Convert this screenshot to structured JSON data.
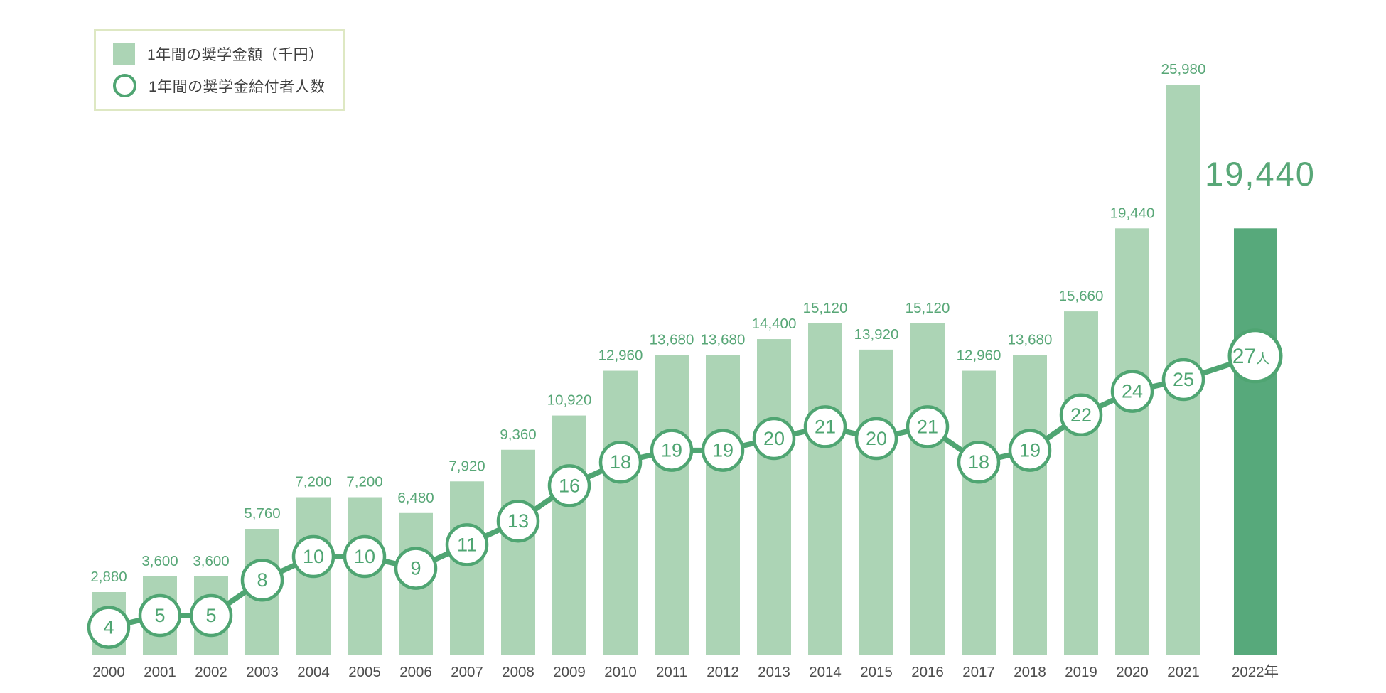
{
  "legend": {
    "bar_label": "1年間の奨学金額（千円）",
    "line_label": "1年間の奨学金給付者人数"
  },
  "highlight": {
    "big_value_label": "19,440",
    "person_count_label": "27",
    "person_suffix": "人"
  },
  "colors": {
    "bar_light": "#ACD4B5",
    "bar_dark": "#57A97B",
    "line_green": "#4FA572",
    "value_text": "#58A777",
    "axis_text": "#4D4D4D",
    "legend_border": "#DEE8C3",
    "circle_fill": "#FFFFFF"
  },
  "chart_data": {
    "type": "bar",
    "subtype": "bar+line-combo",
    "title": "",
    "xlabel": "",
    "ylabel": "",
    "grid": false,
    "legend_position": "top-left",
    "ylim": [
      0,
      26000
    ],
    "categories": [
      "2000",
      "2001",
      "2002",
      "2003",
      "2004",
      "2005",
      "2006",
      "2007",
      "2008",
      "2009",
      "2010",
      "2011",
      "2012",
      "2013",
      "2014",
      "2015",
      "2016",
      "2017",
      "2018",
      "2019",
      "2020",
      "2021",
      "2022年"
    ],
    "series": [
      {
        "name": "1年間の奨学金額（千円）",
        "type": "bar",
        "values": [
          2880,
          3600,
          3600,
          5760,
          7200,
          7200,
          6480,
          7920,
          9360,
          10920,
          12960,
          13680,
          13680,
          14400,
          15120,
          13920,
          15120,
          12960,
          13680,
          15660,
          19440,
          25980,
          19440
        ],
        "labels": [
          "2,880",
          "3,600",
          "3,600",
          "5,760",
          "7,200",
          "7,200",
          "6,480",
          "7,920",
          "9,360",
          "10,920",
          "12,960",
          "13,680",
          "13,680",
          "14,400",
          "15,120",
          "13,920",
          "15,120",
          "12,960",
          "13,680",
          "15,660",
          "19,440",
          "25,980",
          "19,440"
        ],
        "highlight_last": true
      },
      {
        "name": "1年間の奨学金給付者人数",
        "type": "line",
        "values": [
          4,
          5,
          5,
          8,
          10,
          10,
          9,
          11,
          13,
          16,
          18,
          19,
          19,
          20,
          21,
          20,
          21,
          18,
          19,
          22,
          24,
          25,
          27
        ],
        "labels": [
          "4",
          "5",
          "5",
          "8",
          "10",
          "10",
          "9",
          "11",
          "13",
          "16",
          "18",
          "19",
          "19",
          "20",
          "21",
          "20",
          "21",
          "18",
          "19",
          "22",
          "24",
          "25",
          "27"
        ]
      }
    ]
  }
}
